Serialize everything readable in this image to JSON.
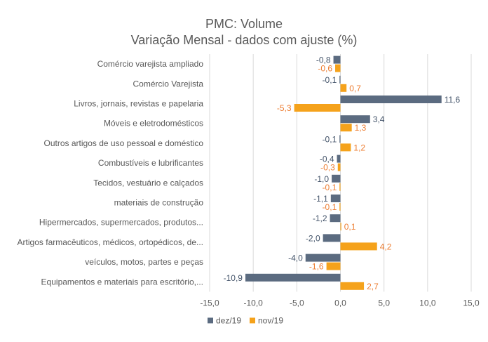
{
  "chart_data": {
    "type": "bar",
    "orientation": "horizontal",
    "title": "PMC: Volume",
    "subtitle": "Variação Mensal - dados com ajuste (%)",
    "categories": [
      "Comércio varejista ampliado",
      "Comércio Varejista",
      "Livros, jornais, revistas e papelaria",
      "Móveis e eletrodomésticos",
      "Outros artigos de uso pessoal e doméstico",
      "Combustíveis e lubrificantes",
      "Tecidos, vestuário e calçados",
      "materiais de construção",
      "Hipermercados, supermercados, produtos...",
      "Artigos farmacêuticos, médicos, ortopédicos, de...",
      "veículos, motos, partes e peças",
      "Equipamentos e materiais para escritório,..."
    ],
    "series": [
      {
        "name": "dez/19",
        "color": "#5B6B80",
        "values": [
          -0.8,
          -0.1,
          11.6,
          3.4,
          -0.1,
          -0.4,
          -1.0,
          -1.1,
          -1.2,
          -2.0,
          -4.0,
          -10.9
        ],
        "labels": [
          "-0,8",
          "-0,1",
          "11,6",
          "3,4",
          "-0,1",
          "-0,4",
          "-1,0",
          "-1,1",
          "-1,2",
          "-2,0",
          "-4,0",
          "-10,9"
        ]
      },
      {
        "name": "nov/19",
        "color": "#F5A21B",
        "values": [
          -0.6,
          0.7,
          -5.3,
          1.3,
          1.2,
          -0.3,
          -0.1,
          -0.1,
          0.1,
          4.2,
          -1.6,
          2.7
        ],
        "labels": [
          "-0,6",
          "0,7",
          "-5,3",
          "1,3",
          "1,2",
          "-0,3",
          "-0,1",
          "-0,1",
          "0,1",
          "4,2",
          "-1,6",
          "2,7"
        ]
      }
    ],
    "xlim": [
      -15,
      15
    ],
    "xticks": [
      -15,
      -10,
      -5,
      0,
      5,
      10,
      15
    ],
    "xtick_labels": [
      "-15,0",
      "-10,0",
      "-5,0",
      "0,0",
      "5,0",
      "10,0",
      "15,0"
    ],
    "grid": true,
    "legend_position": "bottom",
    "label_color_dez": "#44546A",
    "label_color_nov": "#ED7D31"
  }
}
